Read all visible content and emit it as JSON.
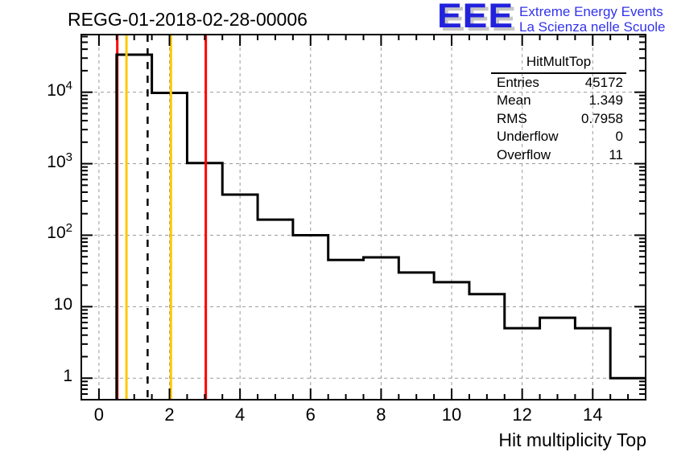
{
  "header": {
    "title": "REGG-01-2018-02-28-00006"
  },
  "logo": {
    "acronym": "EEE",
    "line1": "Extreme Energy Events",
    "line2": "La Scienza nelle Scuole",
    "letters_color": "#2222dd",
    "text_color": "#3333ee",
    "shadow_color": "#c6c6c6"
  },
  "stats": {
    "title": "HitMultTop",
    "rows": [
      {
        "label": "Entries",
        "value": "45172"
      },
      {
        "label": "Mean",
        "value": "1.349"
      },
      {
        "label": "RMS",
        "value": "0.7958"
      },
      {
        "label": "Underflow",
        "value": "0"
      },
      {
        "label": "Overflow",
        "value": "11"
      }
    ]
  },
  "axes": {
    "x_title": "Hit multiplicity Top",
    "x_ticks": [
      {
        "v": 0,
        "label": "0"
      },
      {
        "v": 2,
        "label": "2"
      },
      {
        "v": 4,
        "label": "4"
      },
      {
        "v": 6,
        "label": "6"
      },
      {
        "v": 8,
        "label": "8"
      },
      {
        "v": 10,
        "label": "10"
      },
      {
        "v": 12,
        "label": "12"
      },
      {
        "v": 14,
        "label": "14"
      }
    ],
    "y_ticks": [
      {
        "v": 1,
        "base": "1",
        "exp": ""
      },
      {
        "v": 10,
        "base": "10",
        "exp": ""
      },
      {
        "v": 100,
        "base": "10",
        "exp": "2"
      },
      {
        "v": 1000,
        "base": "10",
        "exp": "3"
      },
      {
        "v": 10000,
        "base": "10",
        "exp": "4"
      }
    ]
  },
  "chart_data": {
    "type": "bar",
    "title": "REGG-01-2018-02-28-00006",
    "xlabel": "Hit multiplicity Top",
    "ylabel": "",
    "histogram_name": "HitMultTop",
    "bin_centers": [
      1,
      2,
      3,
      4,
      5,
      6,
      7,
      8,
      9,
      10,
      11,
      12,
      13,
      14,
      15
    ],
    "values": [
      33500,
      9800,
      1020,
      370,
      165,
      100,
      45,
      49,
      30,
      22,
      15,
      5,
      7,
      5,
      1
    ],
    "bin_width": 1,
    "first_bin_left_edge": 0.5,
    "entries": 45172,
    "mean": 1.349,
    "rms": 0.7958,
    "underflow": 0,
    "overflow": 11,
    "xlim": [
      -0.5,
      15.5
    ],
    "ylim": [
      0.5,
      64000
    ],
    "yscale": "log",
    "grid": true,
    "legend_position": "none",
    "marker_lines": {
      "red": [
        0.52,
        3.03
      ],
      "orange": [
        0.78,
        2.04
      ],
      "mean_dashed": 1.38
    },
    "colors": {
      "hist": "#000000",
      "red_line": "#ff0000",
      "orange_line": "#ffc800",
      "mean_line": "#000000",
      "grid": "#9a9a9a",
      "frame": "#000000"
    }
  }
}
